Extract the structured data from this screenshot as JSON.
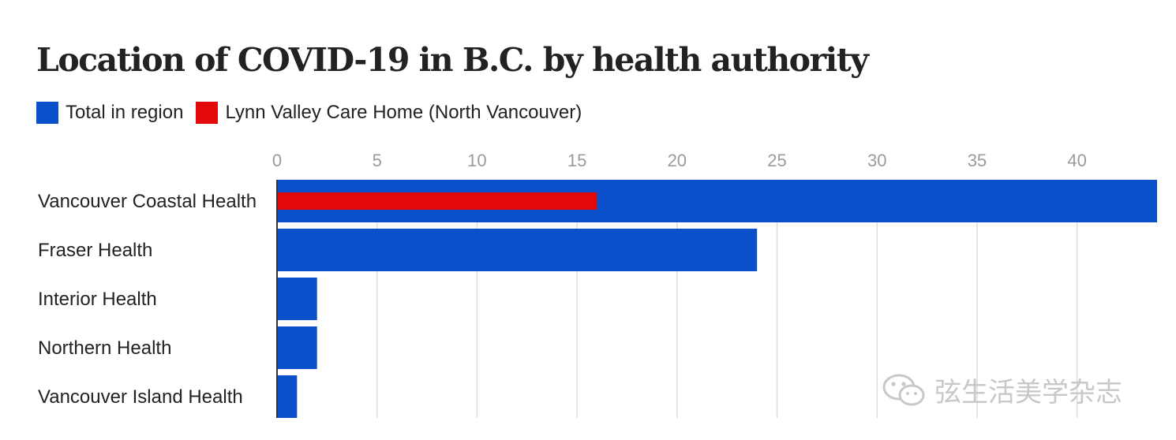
{
  "chart_data": {
    "type": "bar",
    "orientation": "horizontal",
    "title": "Location of COVID-19 in B.C. by health authority",
    "categories": [
      "Vancouver Coastal Health",
      "Fraser Health",
      "Interior Health",
      "Northern Health",
      "Vancouver Island Health"
    ],
    "series": [
      {
        "name": "Total in region",
        "color": "#0a50cb",
        "values": [
          44,
          24,
          2,
          2,
          1
        ]
      },
      {
        "name": "Lynn Valley Care Home (North Vancouver)",
        "color": "#e3080a",
        "values": [
          16,
          null,
          null,
          null,
          null
        ]
      }
    ],
    "xlim": [
      0,
      44
    ],
    "xticks": [
      "0",
      "5",
      "10",
      "15",
      "20",
      "25",
      "30",
      "35",
      "40"
    ],
    "xtick_values": [
      0,
      5,
      10,
      15,
      20,
      25,
      30,
      35,
      40
    ],
    "xlabel": "",
    "ylabel": "",
    "grid": true,
    "legend_position": "top-left",
    "axis_position": "top"
  },
  "watermark": {
    "text": "弦生活美学杂志",
    "icon": "wechat-icon"
  }
}
